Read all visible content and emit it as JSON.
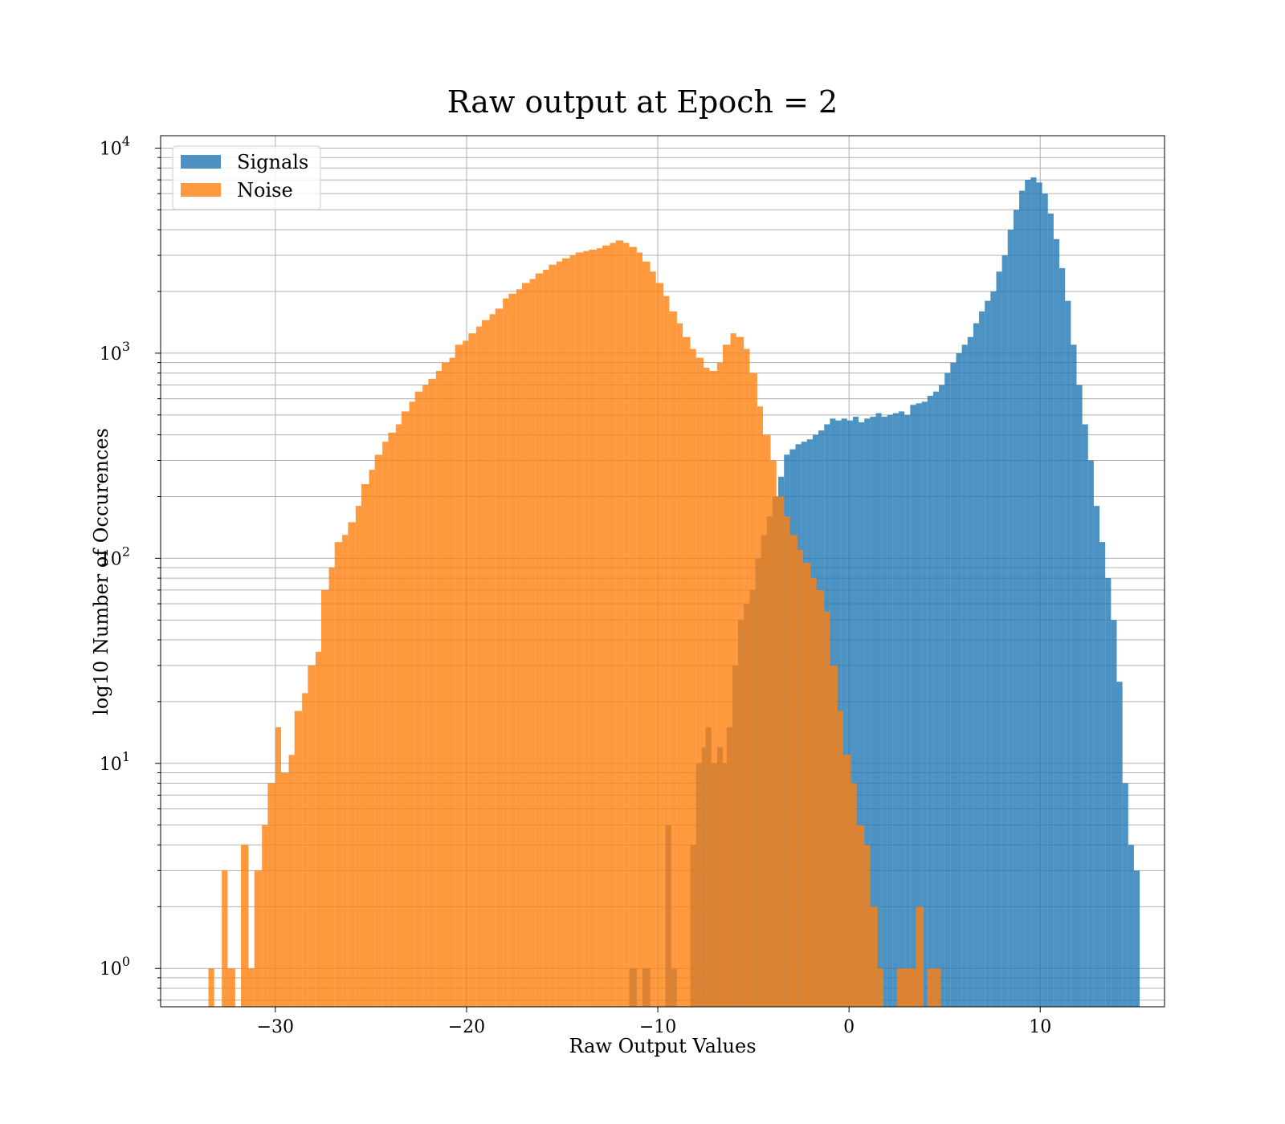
{
  "chart_data": {
    "type": "histogram",
    "title": "Raw output at Epoch = 2",
    "xlabel": "Raw Output Values",
    "ylabel": "log10 Number of Occurences",
    "xlim": [
      -36,
      16.5
    ],
    "ylim": [
      0.65,
      11500
    ],
    "yscale": "log",
    "grid": true,
    "legend_position": "upper-left",
    "x_ticks": [
      -30,
      -20,
      -10,
      0,
      10
    ],
    "x_tick_labels": [
      "−30",
      "−20",
      "−10",
      "0",
      "10"
    ],
    "y_ticks": [
      1,
      10,
      100,
      1000,
      10000
    ],
    "y_tick_bases": [
      "10",
      "10",
      "10",
      "10",
      "10"
    ],
    "y_tick_exponents": [
      "0",
      "1",
      "2",
      "3",
      "4"
    ],
    "series": [
      {
        "name": "Signals",
        "color": "#1f77b4",
        "alpha": 0.8,
        "bins": [
          [
            -11.5,
            -11.1,
            1
          ],
          [
            -10.8,
            -10.4,
            1
          ],
          [
            -9.6,
            -9.3,
            5
          ],
          [
            -9.3,
            -9.0,
            1
          ],
          [
            -8.3,
            -8.0,
            4
          ],
          [
            -8.0,
            -7.7,
            10
          ],
          [
            -7.7,
            -7.5,
            12
          ],
          [
            -7.5,
            -7.2,
            15
          ],
          [
            -7.2,
            -6.9,
            10
          ],
          [
            -6.9,
            -6.6,
            12
          ],
          [
            -6.6,
            -6.4,
            10
          ],
          [
            -6.4,
            -6.1,
            15
          ],
          [
            -6.1,
            -5.8,
            30
          ],
          [
            -5.8,
            -5.5,
            50
          ],
          [
            -5.5,
            -5.2,
            60
          ],
          [
            -5.2,
            -4.9,
            70
          ],
          [
            -4.9,
            -4.6,
            100
          ],
          [
            -4.6,
            -4.3,
            130
          ],
          [
            -4.3,
            -4.0,
            160
          ],
          [
            -4.0,
            -3.7,
            200
          ],
          [
            -3.7,
            -3.4,
            250
          ],
          [
            -3.4,
            -3.1,
            320
          ],
          [
            -3.1,
            -2.8,
            340
          ],
          [
            -2.8,
            -2.5,
            360
          ],
          [
            -2.5,
            -2.2,
            370
          ],
          [
            -2.2,
            -1.9,
            380
          ],
          [
            -1.9,
            -1.6,
            400
          ],
          [
            -1.6,
            -1.3,
            420
          ],
          [
            -1.3,
            -1.0,
            450
          ],
          [
            -1.0,
            -0.7,
            480
          ],
          [
            -0.7,
            -0.4,
            470
          ],
          [
            -0.4,
            -0.1,
            480
          ],
          [
            -0.1,
            0.2,
            470
          ],
          [
            0.2,
            0.5,
            490
          ],
          [
            0.5,
            0.8,
            460
          ],
          [
            0.8,
            1.1,
            480
          ],
          [
            1.1,
            1.4,
            490
          ],
          [
            1.4,
            1.7,
            510
          ],
          [
            1.7,
            2.0,
            490
          ],
          [
            2.0,
            2.3,
            500
          ],
          [
            2.3,
            2.6,
            510
          ],
          [
            2.6,
            2.9,
            520
          ],
          [
            2.9,
            3.2,
            500
          ],
          [
            3.2,
            3.5,
            560
          ],
          [
            3.5,
            3.8,
            570
          ],
          [
            3.8,
            4.1,
            580
          ],
          [
            4.1,
            4.4,
            620
          ],
          [
            4.4,
            4.7,
            650
          ],
          [
            4.7,
            5.0,
            700
          ],
          [
            5.0,
            5.3,
            800
          ],
          [
            5.3,
            5.6,
            900
          ],
          [
            5.6,
            5.9,
            1000
          ],
          [
            5.9,
            6.2,
            1100
          ],
          [
            6.2,
            6.5,
            1200
          ],
          [
            6.5,
            6.8,
            1400
          ],
          [
            6.8,
            7.1,
            1600
          ],
          [
            7.1,
            7.4,
            1800
          ],
          [
            7.4,
            7.7,
            2000
          ],
          [
            7.7,
            8.0,
            2500
          ],
          [
            8.0,
            8.3,
            3000
          ],
          [
            8.3,
            8.6,
            4000
          ],
          [
            8.6,
            8.9,
            5000
          ],
          [
            8.9,
            9.2,
            6200
          ],
          [
            9.2,
            9.5,
            7000
          ],
          [
            9.5,
            9.8,
            7200
          ],
          [
            9.8,
            10.1,
            6800
          ],
          [
            10.1,
            10.4,
            6000
          ],
          [
            10.4,
            10.7,
            4800
          ],
          [
            10.7,
            11.0,
            3600
          ],
          [
            11.0,
            11.3,
            2600
          ],
          [
            11.3,
            11.6,
            1800
          ],
          [
            11.6,
            11.9,
            1100
          ],
          [
            11.9,
            12.2,
            700
          ],
          [
            12.2,
            12.5,
            450
          ],
          [
            12.5,
            12.8,
            300
          ],
          [
            12.8,
            13.1,
            180
          ],
          [
            13.1,
            13.4,
            120
          ],
          [
            13.4,
            13.7,
            80
          ],
          [
            13.7,
            14.0,
            50
          ],
          [
            14.0,
            14.3,
            25
          ],
          [
            14.3,
            14.6,
            8
          ],
          [
            14.6,
            14.9,
            4
          ],
          [
            14.9,
            15.2,
            3
          ]
        ]
      },
      {
        "name": "Noise",
        "color": "#ff7f0e",
        "alpha": 0.8,
        "bins": [
          [
            -33.5,
            -33.2,
            1
          ],
          [
            -32.8,
            -32.5,
            3
          ],
          [
            -32.5,
            -32.1,
            1
          ],
          [
            -31.8,
            -31.4,
            4
          ],
          [
            -31.4,
            -31.1,
            1
          ],
          [
            -31.1,
            -30.7,
            3
          ],
          [
            -30.7,
            -30.4,
            5
          ],
          [
            -30.4,
            -30.0,
            8
          ],
          [
            -30.0,
            -29.7,
            15
          ],
          [
            -29.7,
            -29.3,
            9
          ],
          [
            -29.3,
            -29.0,
            11
          ],
          [
            -29.0,
            -28.6,
            18
          ],
          [
            -28.6,
            -28.3,
            22
          ],
          [
            -28.3,
            -27.9,
            30
          ],
          [
            -27.9,
            -27.6,
            35
          ],
          [
            -27.6,
            -27.2,
            70
          ],
          [
            -27.2,
            -26.9,
            90
          ],
          [
            -26.9,
            -26.5,
            120
          ],
          [
            -26.5,
            -26.2,
            130
          ],
          [
            -26.2,
            -25.8,
            150
          ],
          [
            -25.8,
            -25.5,
            180
          ],
          [
            -25.5,
            -25.1,
            230
          ],
          [
            -25.1,
            -24.8,
            270
          ],
          [
            -24.8,
            -24.4,
            320
          ],
          [
            -24.4,
            -24.1,
            370
          ],
          [
            -24.1,
            -23.7,
            410
          ],
          [
            -23.7,
            -23.4,
            450
          ],
          [
            -23.4,
            -23.0,
            520
          ],
          [
            -23.0,
            -22.7,
            580
          ],
          [
            -22.7,
            -22.3,
            650
          ],
          [
            -22.3,
            -22.0,
            700
          ],
          [
            -22.0,
            -21.6,
            750
          ],
          [
            -21.6,
            -21.3,
            820
          ],
          [
            -21.3,
            -20.9,
            900
          ],
          [
            -20.9,
            -20.6,
            950
          ],
          [
            -20.6,
            -20.2,
            1100
          ],
          [
            -20.2,
            -19.9,
            1150
          ],
          [
            -19.9,
            -19.5,
            1250
          ],
          [
            -19.5,
            -19.2,
            1350
          ],
          [
            -19.2,
            -18.8,
            1450
          ],
          [
            -18.8,
            -18.5,
            1550
          ],
          [
            -18.5,
            -18.1,
            1650
          ],
          [
            -18.1,
            -17.8,
            1850
          ],
          [
            -17.8,
            -17.4,
            1950
          ],
          [
            -17.4,
            -17.1,
            2050
          ],
          [
            -17.1,
            -16.7,
            2200
          ],
          [
            -16.7,
            -16.4,
            2300
          ],
          [
            -16.4,
            -16.0,
            2450
          ],
          [
            -16.0,
            -15.7,
            2550
          ],
          [
            -15.7,
            -15.3,
            2700
          ],
          [
            -15.3,
            -15.0,
            2800
          ],
          [
            -15.0,
            -14.6,
            2900
          ],
          [
            -14.6,
            -14.3,
            3000
          ],
          [
            -14.3,
            -13.9,
            3100
          ],
          [
            -13.9,
            -13.6,
            3150
          ],
          [
            -13.6,
            -13.2,
            3200
          ],
          [
            -13.2,
            -12.9,
            3250
          ],
          [
            -12.9,
            -12.5,
            3350
          ],
          [
            -12.5,
            -12.2,
            3450
          ],
          [
            -12.2,
            -11.8,
            3550
          ],
          [
            -11.8,
            -11.5,
            3450
          ],
          [
            -11.5,
            -11.1,
            3300
          ],
          [
            -11.1,
            -10.8,
            3100
          ],
          [
            -10.8,
            -10.4,
            2800
          ],
          [
            -10.4,
            -10.1,
            2500
          ],
          [
            -10.1,
            -9.7,
            2200
          ],
          [
            -9.7,
            -9.4,
            1900
          ],
          [
            -9.4,
            -9.0,
            1600
          ],
          [
            -9.0,
            -8.7,
            1400
          ],
          [
            -8.7,
            -8.3,
            1200
          ],
          [
            -8.3,
            -8.0,
            1050
          ],
          [
            -8.0,
            -7.6,
            950
          ],
          [
            -7.6,
            -7.3,
            850
          ],
          [
            -7.3,
            -6.9,
            820
          ],
          [
            -6.9,
            -6.6,
            900
          ],
          [
            -6.6,
            -6.2,
            1100
          ],
          [
            -6.2,
            -5.9,
            1250
          ],
          [
            -5.9,
            -5.5,
            1200
          ],
          [
            -5.5,
            -5.2,
            1050
          ],
          [
            -5.2,
            -4.8,
            800
          ],
          [
            -4.8,
            -4.5,
            550
          ],
          [
            -4.5,
            -4.1,
            400
          ],
          [
            -4.1,
            -3.8,
            300
          ],
          [
            -3.8,
            -3.4,
            200
          ],
          [
            -3.4,
            -3.1,
            160
          ],
          [
            -3.1,
            -2.7,
            130
          ],
          [
            -2.7,
            -2.4,
            110
          ],
          [
            -2.4,
            -2.0,
            95
          ],
          [
            -2.0,
            -1.7,
            80
          ],
          [
            -1.7,
            -1.3,
            70
          ],
          [
            -1.3,
            -1.0,
            55
          ],
          [
            -1.0,
            -0.6,
            30
          ],
          [
            -0.6,
            -0.3,
            18
          ],
          [
            -0.3,
            0.1,
            11
          ],
          [
            0.1,
            0.4,
            8
          ],
          [
            0.4,
            0.8,
            5
          ],
          [
            0.8,
            1.1,
            4
          ],
          [
            1.1,
            1.5,
            2
          ],
          [
            1.5,
            1.8,
            1
          ],
          [
            2.5,
            2.8,
            1
          ],
          [
            2.8,
            3.2,
            1
          ],
          [
            3.2,
            3.5,
            1
          ],
          [
            3.5,
            3.9,
            2
          ],
          [
            4.1,
            4.5,
            1
          ],
          [
            4.5,
            4.8,
            1
          ]
        ]
      }
    ]
  }
}
